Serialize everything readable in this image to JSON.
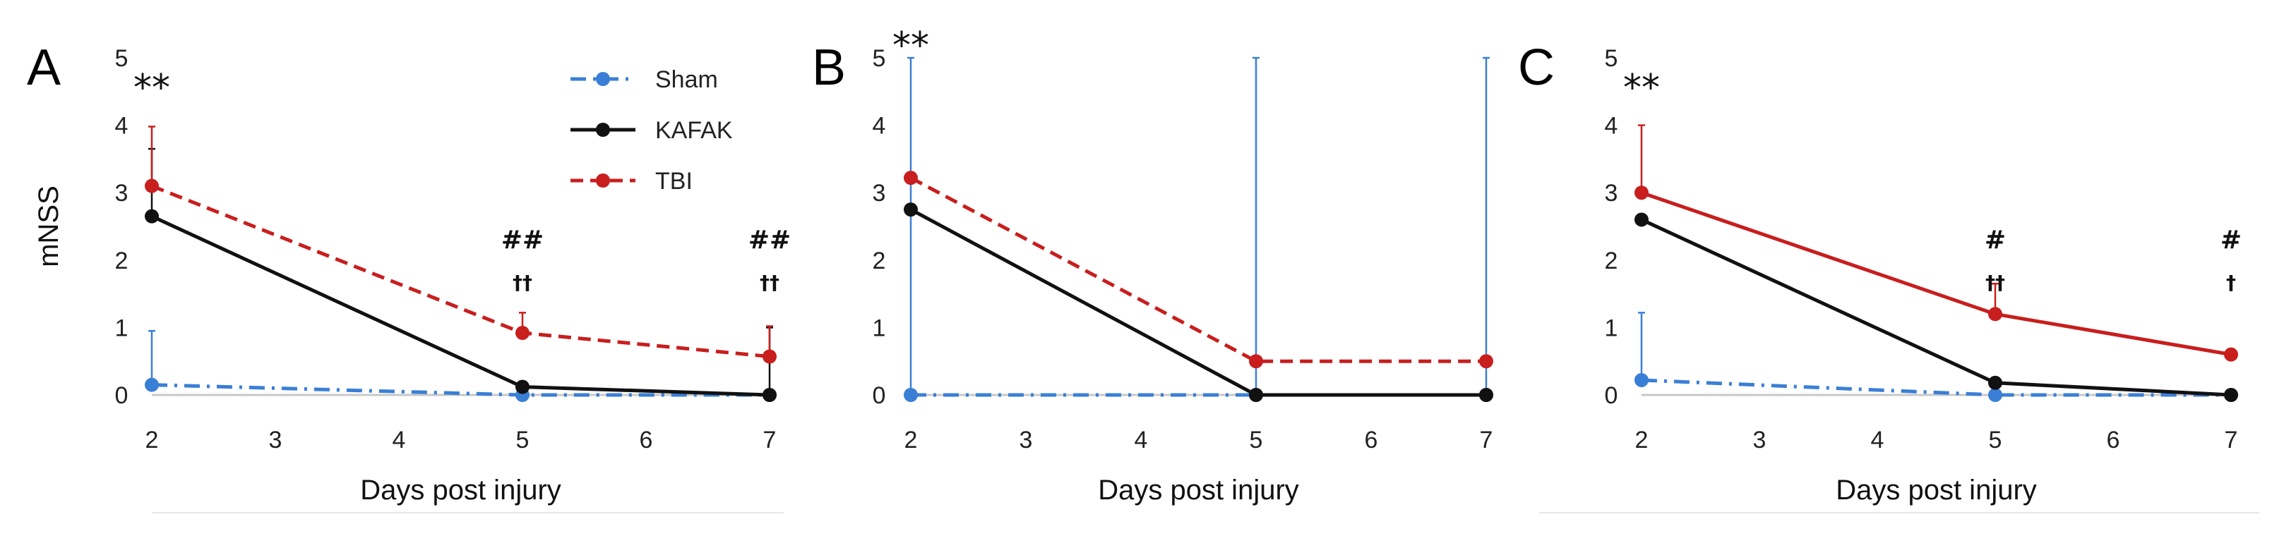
{
  "colors": {
    "Sham": "#3a7fd6",
    "KAFAK": "#111111",
    "TBI": "#c81e1e"
  },
  "chart_data": [
    {
      "type": "line",
      "panel_label": "A",
      "xlabel": "Days post injury",
      "ylabel": "mNSS",
      "xlim": [
        2,
        7
      ],
      "ylim": [
        0,
        5
      ],
      "x_ticks": [
        2,
        3,
        4,
        5,
        6,
        7
      ],
      "y_ticks": [
        0,
        1,
        2,
        3,
        4,
        5
      ],
      "grid": false,
      "legend": {
        "placement": "top-center",
        "entries": [
          "Sham",
          "KAFAK",
          "TBI"
        ]
      },
      "series": [
        {
          "name": "Sham",
          "style": "dashdot",
          "x": [
            2,
            5,
            7
          ],
          "y": [
            0.15,
            0.0,
            0.0
          ],
          "err": [
            0.8,
            0,
            0
          ]
        },
        {
          "name": "KAFAK",
          "style": "solid",
          "x": [
            2,
            5,
            7
          ],
          "y": [
            2.65,
            0.12,
            0.0
          ],
          "err": [
            1.0,
            0,
            1.0
          ]
        },
        {
          "name": "TBI",
          "style": "dashed",
          "x": [
            2,
            5,
            7
          ],
          "y": [
            3.1,
            0.92,
            0.57
          ],
          "err": [
            0.88,
            0.3,
            0.45
          ]
        }
      ],
      "annotations": [
        {
          "x": 2,
          "lines": [
            "**"
          ]
        },
        {
          "x": 5,
          "lines": [
            "##",
            "††"
          ]
        },
        {
          "x": 7,
          "lines": [
            "##",
            "††"
          ]
        }
      ]
    },
    {
      "type": "line",
      "panel_label": "B",
      "xlabel": "Days post injury",
      "ylabel": "",
      "xlim": [
        2,
        7
      ],
      "ylim": [
        0,
        5
      ],
      "x_ticks": [
        2,
        3,
        4,
        5,
        6,
        7
      ],
      "y_ticks": [
        0,
        1,
        2,
        3,
        4,
        5
      ],
      "grid": false,
      "series": [
        {
          "name": "Sham",
          "style": "dashdot",
          "x": [
            2,
            5,
            7
          ],
          "y": [
            0.0,
            0.0,
            0.0
          ],
          "err": [
            5.0,
            5.0,
            5.0
          ]
        },
        {
          "name": "KAFAK",
          "style": "solid",
          "x": [
            2,
            5,
            7
          ],
          "y": [
            2.75,
            0.0,
            0.0
          ],
          "err": [
            0,
            0,
            0
          ]
        },
        {
          "name": "TBI",
          "style": "dashed",
          "x": [
            2,
            5,
            7
          ],
          "y": [
            3.22,
            0.5,
            0.5
          ],
          "err": [
            0,
            0,
            0
          ]
        }
      ],
      "annotations": [
        {
          "x": 2,
          "lines": [
            "**"
          ]
        }
      ]
    },
    {
      "type": "line",
      "panel_label": "C",
      "xlabel": "Days post injury",
      "ylabel": "",
      "xlim": [
        2,
        7
      ],
      "ylim": [
        0,
        5
      ],
      "x_ticks": [
        2,
        3,
        4,
        5,
        6,
        7
      ],
      "y_ticks": [
        0,
        1,
        2,
        3,
        4,
        5
      ],
      "grid": false,
      "series": [
        {
          "name": "Sham",
          "style": "dashdot",
          "x": [
            2,
            5,
            7
          ],
          "y": [
            0.22,
            0.0,
            0.0
          ],
          "err": [
            1.0,
            0,
            0
          ]
        },
        {
          "name": "KAFAK",
          "style": "solid",
          "x": [
            2,
            5,
            7
          ],
          "y": [
            2.6,
            0.18,
            0.0
          ],
          "err": [
            0,
            0,
            0
          ]
        },
        {
          "name": "TBI",
          "style": "solid",
          "x": [
            2,
            5,
            7
          ],
          "y": [
            3.0,
            1.2,
            0.6
          ],
          "err": [
            1.0,
            0.45,
            0
          ]
        }
      ],
      "annotations": [
        {
          "x": 2,
          "lines": [
            "**"
          ]
        },
        {
          "x": 5,
          "lines": [
            "#",
            "††"
          ]
        },
        {
          "x": 7,
          "lines": [
            "#",
            "†"
          ]
        }
      ]
    }
  ]
}
